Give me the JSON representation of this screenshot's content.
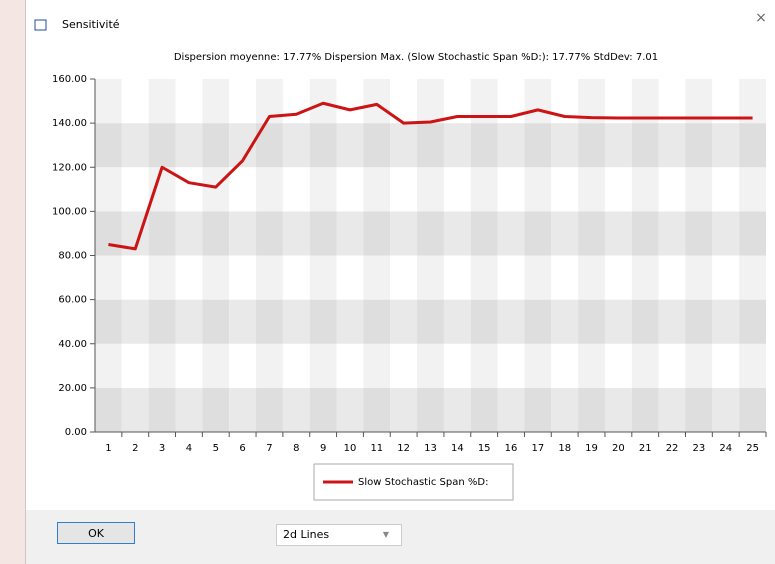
{
  "window": {
    "title": "Sensitivité"
  },
  "chart_data": {
    "type": "line",
    "subtitle": "Dispersion moyenne: 17.77%  Dispersion Max. (Slow Stochastic Span %D:): 17.77%  StdDev: 7.01",
    "categories": [
      "1",
      "2",
      "3",
      "4",
      "5",
      "6",
      "7",
      "8",
      "9",
      "10",
      "11",
      "12",
      "13",
      "14",
      "15",
      "16",
      "17",
      "18",
      "19",
      "20",
      "21",
      "22",
      "23",
      "24",
      "25"
    ],
    "series": [
      {
        "name": "Slow Stochastic Span %D:",
        "color": "#cc1414",
        "values": [
          85,
          83,
          120,
          113,
          111,
          123,
          143,
          144,
          149,
          146,
          148.5,
          140,
          140.5,
          143,
          143,
          143,
          146,
          143,
          142.5,
          142.3,
          142.3,
          142.3,
          142.3,
          142.3,
          142.3
        ]
      }
    ],
    "ylim": [
      0,
      160
    ],
    "yticks": [
      {
        "value": 0,
        "label": "0.00"
      },
      {
        "value": 20,
        "label": "20.00"
      },
      {
        "value": 40,
        "label": "40.00"
      },
      {
        "value": 60,
        "label": "60.00"
      },
      {
        "value": 80,
        "label": "80.00"
      },
      {
        "value": 100,
        "label": "100.00"
      },
      {
        "value": 120,
        "label": "120.00"
      },
      {
        "value": 140,
        "label": "140.00"
      },
      {
        "value": 160,
        "label": "160.00"
      }
    ],
    "grid": true
  },
  "buttons": {
    "ok": "OK"
  },
  "dropdown": {
    "value": "2d Lines"
  }
}
